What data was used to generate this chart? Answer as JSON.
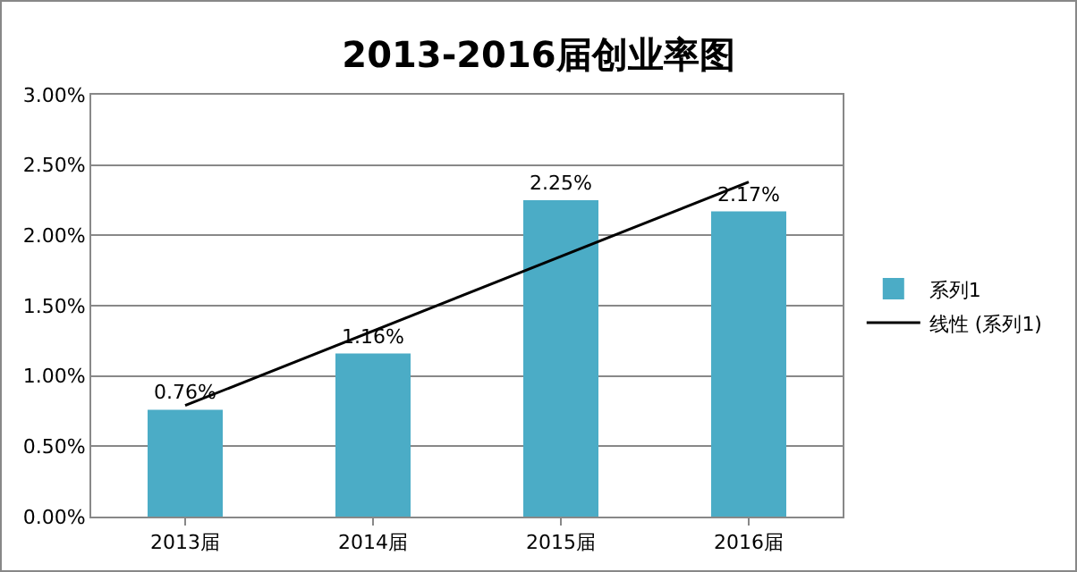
{
  "chart_data": {
    "type": "bar",
    "title": "2013-2016届创业率图",
    "categories": [
      "2013届",
      "2014届",
      "2015届",
      "2016届"
    ],
    "series": [
      {
        "name": "系列1",
        "color": "#4bacc6",
        "values": [
          0.76,
          1.16,
          2.25,
          2.17
        ],
        "value_labels": [
          "0.76%",
          "1.16%",
          "2.25%",
          "2.17%"
        ]
      },
      {
        "name": "线性 (系列1)",
        "type": "line",
        "color": "#000000",
        "x": [
          "2013届",
          "2016届"
        ],
        "values": [
          0.79,
          2.38
        ],
        "line_style": "solid",
        "marker": "none"
      }
    ],
    "ylim": [
      0,
      3
    ],
    "yticks": [
      {
        "value": 0,
        "label": "0.00%"
      },
      {
        "value": 0.5,
        "label": "0.50%"
      },
      {
        "value": 1,
        "label": "1.00%"
      },
      {
        "value": 1.5,
        "label": "1.50%"
      },
      {
        "value": 2,
        "label": "2.00%"
      },
      {
        "value": 2.5,
        "label": "2.50%"
      },
      {
        "value": 3,
        "label": "3.00%"
      }
    ],
    "grid": "y",
    "legend": "right"
  }
}
